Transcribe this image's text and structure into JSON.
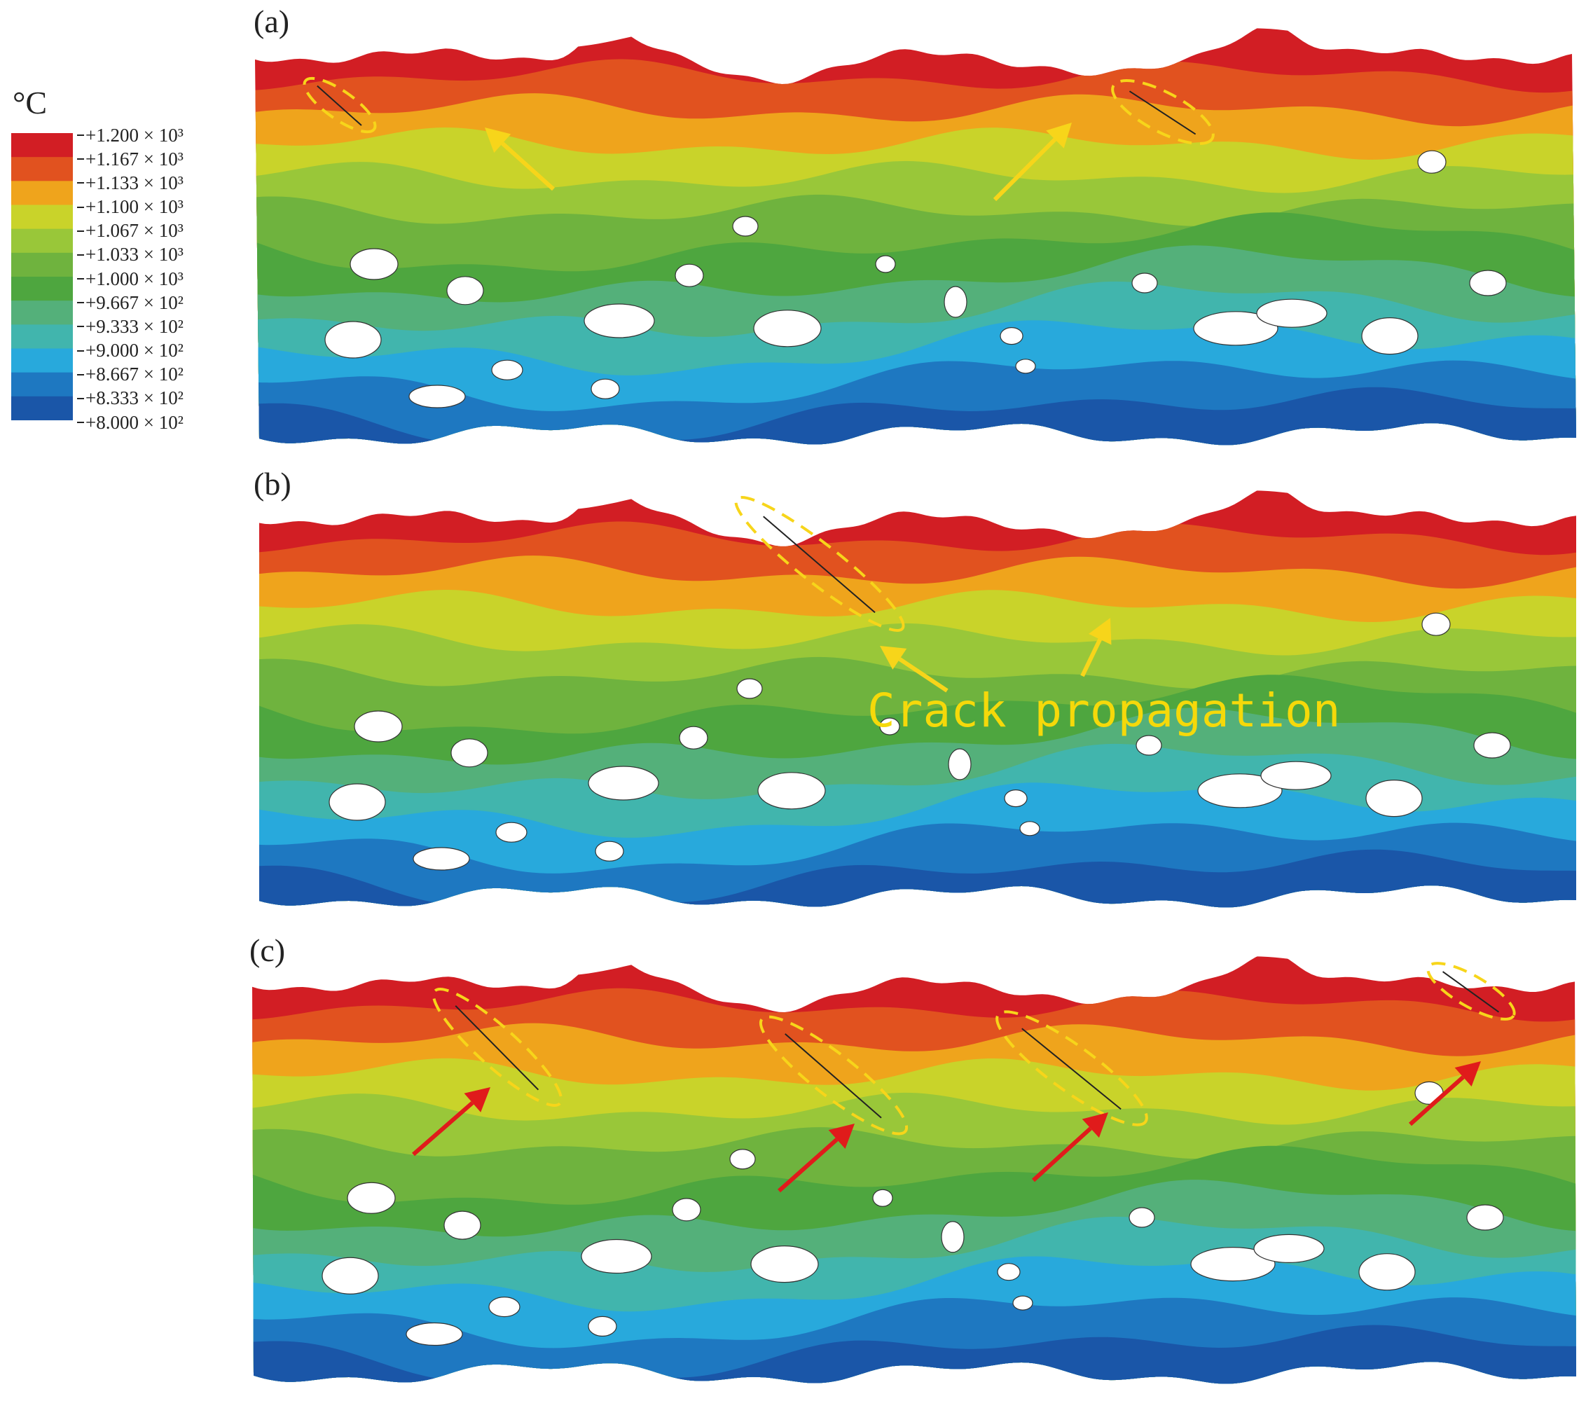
{
  "legend": {
    "unit": "°C",
    "entries": [
      {
        "label": "+1.200 × 10³",
        "color": "#d21e24"
      },
      {
        "label": "+1.167 × 10³",
        "color": "#e1521f"
      },
      {
        "label": "+1.133 × 10³",
        "color": "#efa41c"
      },
      {
        "label": "+1.100 × 10³",
        "color": "#c9d32a"
      },
      {
        "label": "+1.067 × 10³",
        "color": "#99c739"
      },
      {
        "label": "+1.033 × 10³",
        "color": "#6fb33e"
      },
      {
        "label": "+1.000 × 10³",
        "color": "#4ea63f"
      },
      {
        "label": "+9.667 × 10²",
        "color": "#54b07a"
      },
      {
        "label": "+9.333 × 10²",
        "color": "#41b5ad"
      },
      {
        "label": "+9.000 × 10²",
        "color": "#28a9dc"
      },
      {
        "label": "+8.667 × 10²",
        "color": "#1e78c1"
      },
      {
        "label": "+8.333 × 10²",
        "color": "#1a56a8"
      },
      {
        "label": "+8.000 × 10²",
        "color": "#173f93"
      }
    ]
  },
  "panels": [
    {
      "label": "(a)"
    },
    {
      "label": "(b)",
      "annotation": "Crack propagation"
    },
    {
      "label": "(c)"
    }
  ],
  "colors": {
    "crack_outline": "#f7d51a",
    "yellow_arrow": "#f7d51a",
    "red_arrow": "#e01b1b",
    "pore": "#ffffff"
  }
}
